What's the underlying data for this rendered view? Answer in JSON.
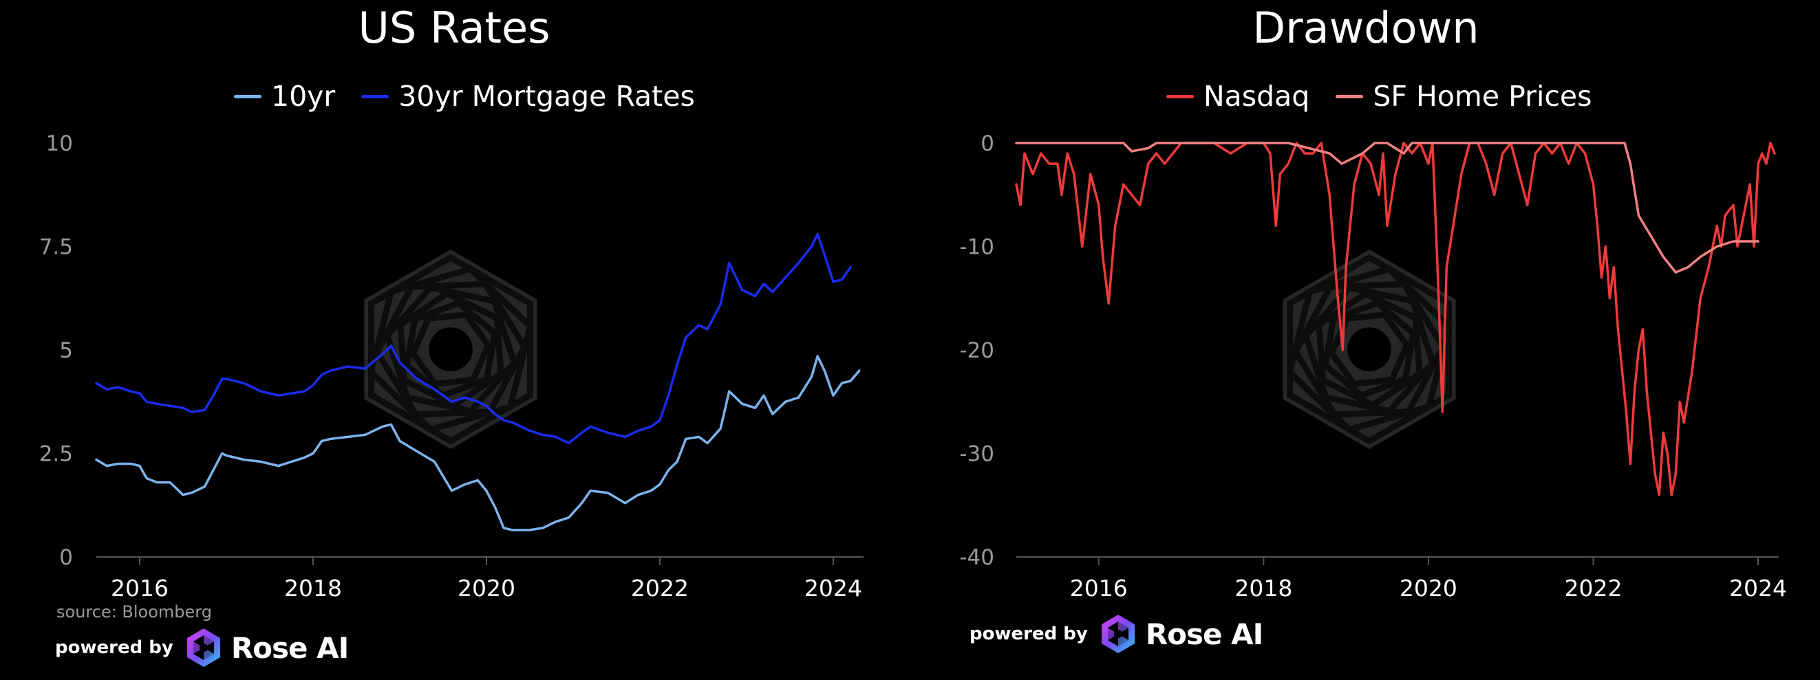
{
  "chart_data": [
    {
      "type": "line",
      "title": "US Rates",
      "ylim": [
        0,
        10
      ],
      "y_ticks": [
        0,
        2.5,
        5,
        7.5,
        10
      ],
      "y_tick_labels": [
        "0",
        "2.5",
        "5",
        "7.5",
        "10"
      ],
      "xlim": [
        2015.5,
        2024.35
      ],
      "x_ticks": [
        2016,
        2018,
        2020,
        2022,
        2024
      ],
      "x_tick_labels": [
        "2016",
        "2018",
        "2020",
        "2022",
        "2024"
      ],
      "grid": false,
      "legend_position": "top-center",
      "series": [
        {
          "name": "10yr",
          "color": "#7cb3ec",
          "x": [
            2015.5,
            2015.62,
            2015.75,
            2015.9,
            2016.0,
            2016.08,
            2016.2,
            2016.35,
            2016.5,
            2016.6,
            2016.75,
            2016.85,
            2016.95,
            2017.0,
            2017.2,
            2017.4,
            2017.6,
            2017.75,
            2017.9,
            2018.0,
            2018.1,
            2018.2,
            2018.4,
            2018.6,
            2018.8,
            2018.9,
            2019.0,
            2019.2,
            2019.4,
            2019.6,
            2019.75,
            2019.9,
            2020.0,
            2020.1,
            2020.2,
            2020.3,
            2020.5,
            2020.65,
            2020.8,
            2020.95,
            2021.1,
            2021.2,
            2021.4,
            2021.6,
            2021.75,
            2021.9,
            2022.0,
            2022.1,
            2022.2,
            2022.3,
            2022.45,
            2022.55,
            2022.7,
            2022.8,
            2022.95,
            2023.1,
            2023.2,
            2023.3,
            2023.45,
            2023.6,
            2023.75,
            2023.82,
            2023.9,
            2024.0,
            2024.1,
            2024.2,
            2024.3
          ],
          "values": [
            2.35,
            2.2,
            2.25,
            2.25,
            2.2,
            1.9,
            1.8,
            1.8,
            1.5,
            1.55,
            1.7,
            2.1,
            2.5,
            2.45,
            2.35,
            2.3,
            2.2,
            2.3,
            2.4,
            2.5,
            2.8,
            2.85,
            2.9,
            2.95,
            3.15,
            3.2,
            2.8,
            2.55,
            2.3,
            1.6,
            1.75,
            1.85,
            1.6,
            1.2,
            0.7,
            0.65,
            0.65,
            0.7,
            0.85,
            0.95,
            1.3,
            1.6,
            1.55,
            1.3,
            1.5,
            1.6,
            1.75,
            2.1,
            2.3,
            2.85,
            2.9,
            2.75,
            3.1,
            4.0,
            3.7,
            3.6,
            3.9,
            3.45,
            3.75,
            3.85,
            4.35,
            4.85,
            4.5,
            3.9,
            4.2,
            4.25,
            4.5
          ]
        },
        {
          "name": "30yr Mortgage Rates",
          "color": "#1a2cf0",
          "x": [
            2015.5,
            2015.62,
            2015.75,
            2015.9,
            2016.0,
            2016.08,
            2016.2,
            2016.35,
            2016.5,
            2016.6,
            2016.75,
            2016.85,
            2016.95,
            2017.0,
            2017.2,
            2017.4,
            2017.6,
            2017.75,
            2017.9,
            2018.0,
            2018.1,
            2018.2,
            2018.4,
            2018.6,
            2018.8,
            2018.9,
            2019.0,
            2019.2,
            2019.4,
            2019.6,
            2019.75,
            2019.9,
            2020.0,
            2020.1,
            2020.2,
            2020.3,
            2020.5,
            2020.65,
            2020.8,
            2020.95,
            2021.1,
            2021.2,
            2021.4,
            2021.6,
            2021.75,
            2021.9,
            2022.0,
            2022.1,
            2022.2,
            2022.3,
            2022.45,
            2022.55,
            2022.7,
            2022.8,
            2022.95,
            2023.1,
            2023.2,
            2023.3,
            2023.45,
            2023.6,
            2023.75,
            2023.82,
            2023.9,
            2024.0,
            2024.1,
            2024.2
          ],
          "values": [
            4.2,
            4.05,
            4.1,
            4.0,
            3.95,
            3.75,
            3.7,
            3.65,
            3.6,
            3.5,
            3.55,
            3.9,
            4.3,
            4.3,
            4.2,
            4.0,
            3.9,
            3.95,
            4.0,
            4.15,
            4.4,
            4.5,
            4.6,
            4.55,
            4.9,
            5.1,
            4.7,
            4.3,
            4.05,
            3.75,
            3.85,
            3.75,
            3.65,
            3.45,
            3.3,
            3.25,
            3.05,
            2.95,
            2.9,
            2.75,
            3.0,
            3.15,
            3.0,
            2.9,
            3.05,
            3.15,
            3.3,
            3.9,
            4.65,
            5.3,
            5.6,
            5.5,
            6.1,
            7.1,
            6.45,
            6.3,
            6.6,
            6.4,
            6.75,
            7.1,
            7.5,
            7.8,
            7.3,
            6.65,
            6.7,
            7.0
          ]
        }
      ]
    },
    {
      "type": "line",
      "title": "Drawdown",
      "ylim": [
        -40,
        0
      ],
      "y_ticks": [
        0,
        -10,
        -20,
        -30,
        -40
      ],
      "y_tick_labels": [
        "0",
        "-10",
        "-20",
        "-30",
        "-40"
      ],
      "xlim": [
        2015.0,
        2024.25
      ],
      "x_ticks": [
        2016,
        2018,
        2020,
        2022,
        2024
      ],
      "x_tick_labels": [
        "2016",
        "2018",
        "2020",
        "2022",
        "2024"
      ],
      "grid": false,
      "legend_position": "top-center",
      "series": [
        {
          "name": "Nasdaq",
          "color": "#f03a3a",
          "x": [
            2015.0,
            2015.05,
            2015.1,
            2015.2,
            2015.3,
            2015.4,
            2015.5,
            2015.55,
            2015.62,
            2015.7,
            2015.8,
            2015.9,
            2016.0,
            2016.05,
            2016.12,
            2016.2,
            2016.3,
            2016.4,
            2016.5,
            2016.6,
            2016.7,
            2016.8,
            2016.9,
            2017.0,
            2017.2,
            2017.4,
            2017.6,
            2017.8,
            2018.0,
            2018.08,
            2018.15,
            2018.2,
            2018.3,
            2018.4,
            2018.5,
            2018.6,
            2018.7,
            2018.8,
            2018.85,
            2018.9,
            2018.96,
            2019.0,
            2019.1,
            2019.2,
            2019.3,
            2019.4,
            2019.45,
            2019.5,
            2019.6,
            2019.7,
            2019.8,
            2019.9,
            2020.0,
            2020.05,
            2020.12,
            2020.17,
            2020.22,
            2020.3,
            2020.4,
            2020.5,
            2020.6,
            2020.7,
            2020.8,
            2020.9,
            2021.0,
            2021.1,
            2021.2,
            2021.3,
            2021.4,
            2021.5,
            2021.6,
            2021.7,
            2021.8,
            2021.9,
            2022.0,
            2022.05,
            2022.1,
            2022.15,
            2022.2,
            2022.25,
            2022.3,
            2022.35,
            2022.4,
            2022.45,
            2022.5,
            2022.55,
            2022.6,
            2022.65,
            2022.7,
            2022.75,
            2022.8,
            2022.85,
            2022.9,
            2022.95,
            2023.0,
            2023.05,
            2023.1,
            2023.2,
            2023.3,
            2023.4,
            2023.5,
            2023.55,
            2023.6,
            2023.7,
            2023.75,
            2023.8,
            2023.85,
            2023.9,
            2023.95,
            2024.0,
            2024.05,
            2024.1,
            2024.15,
            2024.2
          ],
          "values": [
            -4,
            -6,
            -1,
            -3,
            -1,
            -2,
            -2,
            -5,
            -1,
            -3,
            -10,
            -3,
            -6,
            -11,
            -15.5,
            -8,
            -4,
            -5,
            -6,
            -2,
            -1,
            -2,
            -1,
            0,
            0,
            0,
            -1,
            0,
            0,
            -1,
            -8,
            -3,
            -2,
            0,
            -1,
            -1,
            0,
            -5,
            -10,
            -15,
            -20,
            -12,
            -4,
            -1,
            -2,
            -5,
            -1,
            -8,
            -3,
            0,
            -1,
            0,
            -2,
            0,
            -14,
            -26,
            -12,
            -8,
            -3,
            0,
            0,
            -2,
            -5,
            -1,
            0,
            -3,
            -6,
            -1,
            0,
            -1,
            0,
            -2,
            0,
            -1,
            -4,
            -8,
            -13,
            -10,
            -15,
            -12,
            -18,
            -22,
            -26,
            -31,
            -24,
            -20,
            -18,
            -24,
            -28,
            -32,
            -34,
            -28,
            -30,
            -34,
            -32,
            -25,
            -27,
            -22,
            -15,
            -12,
            -8,
            -10,
            -7,
            -6,
            -10,
            -8,
            -6,
            -4,
            -10,
            -2,
            -1,
            -2,
            0,
            -1
          ],
          "min_value": -34
        },
        {
          "name": "SF Home Prices",
          "color": "#f28282",
          "x": [
            2015.0,
            2016.3,
            2016.4,
            2016.6,
            2016.7,
            2017.0,
            2017.5,
            2018.0,
            2018.3,
            2018.55,
            2018.8,
            2018.95,
            2019.2,
            2019.35,
            2019.5,
            2019.7,
            2019.8,
            2020.0,
            2020.2,
            2020.4,
            2021.0,
            2021.5,
            2021.8,
            2022.0,
            2022.2,
            2022.38,
            2022.45,
            2022.55,
            2022.7,
            2022.85,
            2023.0,
            2023.15,
            2023.3,
            2023.5,
            2023.7,
            2023.85,
            2024.0
          ],
          "values": [
            0,
            0,
            -0.8,
            -0.5,
            0,
            0,
            0,
            0,
            0,
            -0.5,
            -1,
            -2,
            -1,
            0,
            0,
            -1,
            0,
            0,
            0,
            0,
            0,
            0,
            0,
            0,
            0,
            0,
            -2,
            -7,
            -9,
            -11,
            -12.5,
            -12,
            -11,
            -10,
            -9.5,
            -9.5,
            -9.5
          ]
        }
      ]
    }
  ],
  "left": {
    "legend": [
      "10yr",
      "30yr Mortgage Rates"
    ],
    "source": "source: Bloomberg",
    "powered_by": "powered by",
    "brand": "Rose AI"
  },
  "right": {
    "legend": [
      "Nasdaq",
      "SF Home Prices"
    ],
    "powered_by": "powered by",
    "brand": "Rose AI"
  }
}
